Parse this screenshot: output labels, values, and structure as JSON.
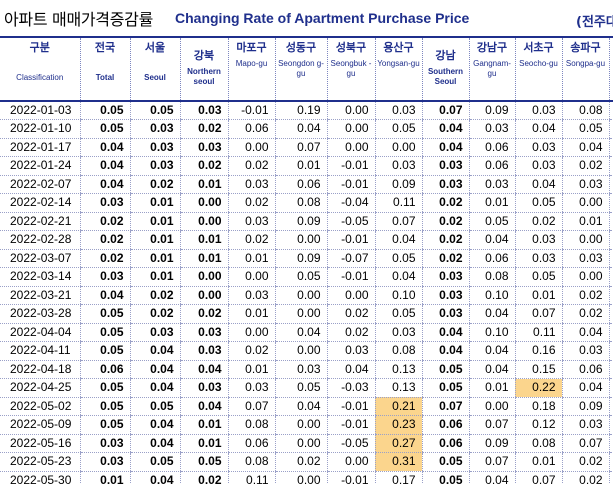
{
  "title": {
    "ko": "아파트 매매가격증감률",
    "en": "Changing Rate of Apartment Purchase Price",
    "note": "(전주대비"
  },
  "columns": [
    {
      "key": "classification",
      "ko": "구분",
      "en": "Classification",
      "bold_values": false
    },
    {
      "key": "total",
      "ko": "전국",
      "en": "Total",
      "bold_values": true
    },
    {
      "key": "seoul",
      "ko": "서울",
      "en": "Seoul",
      "bold_values": true
    },
    {
      "key": "northern",
      "ko": "강북",
      "en": "Northern seoul",
      "bold_values": true
    },
    {
      "key": "mapo",
      "ko": "마포구",
      "en": "Mapo-gu",
      "bold_values": false
    },
    {
      "key": "seongdong",
      "ko": "성동구",
      "en": "Seongdon g-gu",
      "bold_values": false
    },
    {
      "key": "seongbuk",
      "ko": "성북구",
      "en": "Seongbuk -gu",
      "bold_values": false
    },
    {
      "key": "yongsan",
      "ko": "용산구",
      "en": "Yongsan-gu",
      "bold_values": false
    },
    {
      "key": "southern",
      "ko": "강남",
      "en": "Southern Seoul",
      "bold_values": true
    },
    {
      "key": "gangnam",
      "ko": "강남구",
      "en": "Gangnam-gu",
      "bold_values": false
    },
    {
      "key": "seocho",
      "ko": "서초구",
      "en": "Seocho-gu",
      "bold_values": false
    },
    {
      "key": "songpa",
      "ko": "송파구",
      "en": "Songpa-gu",
      "bold_values": false
    }
  ],
  "rows": [
    {
      "date": "2022-01-03",
      "values": [
        "0.05",
        "0.05",
        "0.03",
        "-0.01",
        "0.19",
        "0.00",
        "0.03",
        "0.07",
        "0.09",
        "0.03",
        "0.08"
      ],
      "highlight": []
    },
    {
      "date": "2022-01-10",
      "values": [
        "0.05",
        "0.03",
        "0.02",
        "0.06",
        "0.04",
        "0.00",
        "0.05",
        "0.04",
        "0.03",
        "0.04",
        "0.05"
      ],
      "highlight": []
    },
    {
      "date": "2022-01-17",
      "values": [
        "0.04",
        "0.03",
        "0.03",
        "0.00",
        "0.07",
        "0.00",
        "0.00",
        "0.04",
        "0.06",
        "0.03",
        "0.04"
      ],
      "highlight": []
    },
    {
      "date": "2022-01-24",
      "values": [
        "0.04",
        "0.03",
        "0.02",
        "0.02",
        "0.01",
        "-0.01",
        "0.03",
        "0.03",
        "0.06",
        "0.03",
        "0.02"
      ],
      "highlight": []
    },
    {
      "date": "2022-02-07",
      "values": [
        "0.04",
        "0.02",
        "0.01",
        "0.03",
        "0.06",
        "-0.01",
        "0.09",
        "0.03",
        "0.03",
        "0.04",
        "0.03"
      ],
      "highlight": []
    },
    {
      "date": "2022-02-14",
      "values": [
        "0.03",
        "0.01",
        "0.00",
        "0.02",
        "0.08",
        "-0.04",
        "0.11",
        "0.02",
        "0.01",
        "0.05",
        "0.00"
      ],
      "highlight": []
    },
    {
      "date": "2022-02-21",
      "values": [
        "0.02",
        "0.01",
        "0.00",
        "0.03",
        "0.09",
        "-0.05",
        "0.07",
        "0.02",
        "0.05",
        "0.02",
        "0.01"
      ],
      "highlight": []
    },
    {
      "date": "2022-02-28",
      "values": [
        "0.02",
        "0.01",
        "0.01",
        "0.02",
        "0.00",
        "-0.01",
        "0.04",
        "0.02",
        "0.04",
        "0.03",
        "0.00"
      ],
      "highlight": []
    },
    {
      "date": "2022-03-07",
      "values": [
        "0.02",
        "0.01",
        "0.01",
        "0.01",
        "0.09",
        "-0.07",
        "0.05",
        "0.02",
        "0.06",
        "0.03",
        "0.03"
      ],
      "highlight": []
    },
    {
      "date": "2022-03-14",
      "values": [
        "0.03",
        "0.01",
        "0.00",
        "0.00",
        "0.05",
        "-0.01",
        "0.04",
        "0.03",
        "0.08",
        "0.05",
        "0.00"
      ],
      "highlight": []
    },
    {
      "date": "2022-03-21",
      "values": [
        "0.04",
        "0.02",
        "0.00",
        "0.03",
        "0.00",
        "0.00",
        "0.10",
        "0.03",
        "0.10",
        "0.01",
        "0.02"
      ],
      "highlight": []
    },
    {
      "date": "2022-03-28",
      "values": [
        "0.05",
        "0.02",
        "0.02",
        "0.01",
        "0.00",
        "0.02",
        "0.05",
        "0.03",
        "0.04",
        "0.07",
        "0.02"
      ],
      "highlight": []
    },
    {
      "date": "2022-04-04",
      "values": [
        "0.05",
        "0.03",
        "0.03",
        "0.00",
        "0.04",
        "0.02",
        "0.03",
        "0.04",
        "0.10",
        "0.11",
        "0.04"
      ],
      "highlight": []
    },
    {
      "date": "2022-04-11",
      "values": [
        "0.05",
        "0.04",
        "0.03",
        "0.02",
        "0.00",
        "0.03",
        "0.08",
        "0.04",
        "0.04",
        "0.16",
        "0.03"
      ],
      "highlight": []
    },
    {
      "date": "2022-04-18",
      "values": [
        "0.06",
        "0.04",
        "0.04",
        "0.01",
        "0.03",
        "0.04",
        "0.13",
        "0.05",
        "0.04",
        "0.15",
        "0.06"
      ],
      "highlight": []
    },
    {
      "date": "2022-04-25",
      "values": [
        "0.05",
        "0.04",
        "0.03",
        "0.03",
        "0.05",
        "-0.03",
        "0.13",
        "0.05",
        "0.01",
        "0.22",
        "0.04"
      ],
      "highlight": [
        9
      ]
    },
    {
      "date": "2022-05-02",
      "values": [
        "0.05",
        "0.05",
        "0.04",
        "0.07",
        "0.04",
        "-0.01",
        "0.21",
        "0.07",
        "0.00",
        "0.18",
        "0.09"
      ],
      "highlight": [
        6
      ]
    },
    {
      "date": "2022-05-09",
      "values": [
        "0.05",
        "0.04",
        "0.01",
        "0.08",
        "0.00",
        "-0.01",
        "0.23",
        "0.06",
        "0.07",
        "0.12",
        "0.03"
      ],
      "highlight": [
        6
      ]
    },
    {
      "date": "2022-05-16",
      "values": [
        "0.03",
        "0.04",
        "0.01",
        "0.06",
        "0.00",
        "-0.05",
        "0.27",
        "0.06",
        "0.09",
        "0.08",
        "0.07"
      ],
      "highlight": [
        6
      ]
    },
    {
      "date": "2022-05-23",
      "values": [
        "0.03",
        "0.05",
        "0.05",
        "0.08",
        "0.02",
        "0.00",
        "0.31",
        "0.05",
        "0.07",
        "0.01",
        "0.02"
      ],
      "highlight": [
        6
      ]
    },
    {
      "date": "2022-05-30",
      "values": [
        "0.01",
        "0.04",
        "0.02",
        "0.11",
        "0.00",
        "-0.01",
        "0.17",
        "0.05",
        "0.04",
        "0.07",
        "0.02"
      ],
      "highlight": []
    }
  ]
}
